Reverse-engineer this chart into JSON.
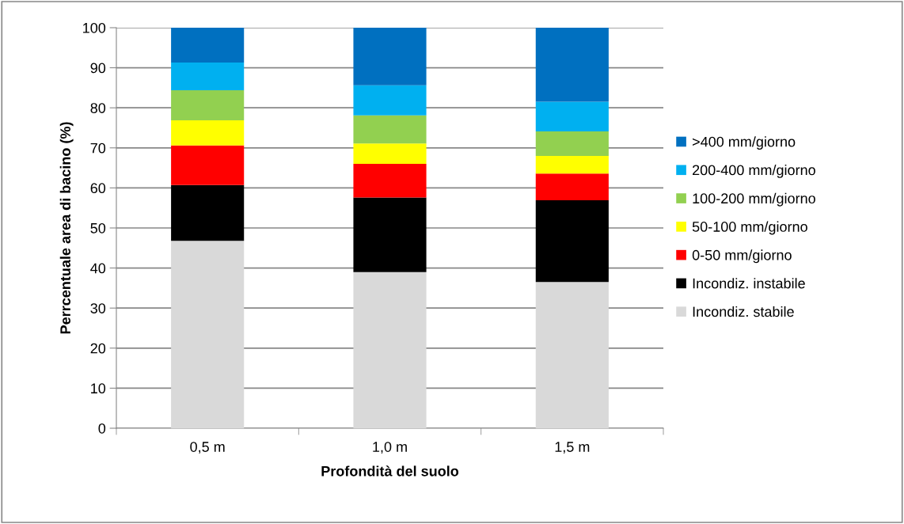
{
  "chart_data": {
    "type": "bar",
    "stacked": true,
    "xlabel": "Profondità del suolo",
    "ylabel": "Perrcentuale area di bacino (%)",
    "categories": [
      "0,5 m",
      "1,0 m",
      "1,5 m"
    ],
    "series": [
      {
        "name": "Incondiz. stabile",
        "color": "#d9d9d9",
        "values": [
          46.8,
          39.0,
          36.5
        ]
      },
      {
        "name": "Incondiz. instabile",
        "color": "#000000",
        "values": [
          13.9,
          18.6,
          20.4
        ]
      },
      {
        "name": "0-50 mm/giorno",
        "color": "#ff0000",
        "values": [
          9.9,
          8.4,
          6.7
        ]
      },
      {
        "name": "50-100 mm/giorno",
        "color": "#ffff00",
        "values": [
          6.3,
          5.1,
          4.4
        ]
      },
      {
        "name": "100-200 mm/giorno",
        "color": "#92d050",
        "values": [
          7.5,
          7.0,
          6.1
        ]
      },
      {
        "name": "200-400 mm/giorno",
        "color": "#00b0f0",
        "values": [
          6.9,
          7.5,
          7.4
        ]
      },
      {
        "name": ">400 mm/giorno",
        "color": "#0070c0",
        "values": [
          8.7,
          14.4,
          18.5
        ]
      }
    ],
    "ylim": [
      0,
      100
    ],
    "yticks": [
      0,
      10,
      20,
      30,
      40,
      50,
      60,
      70,
      80,
      90,
      100
    ],
    "grid": "y",
    "legend": "right"
  }
}
